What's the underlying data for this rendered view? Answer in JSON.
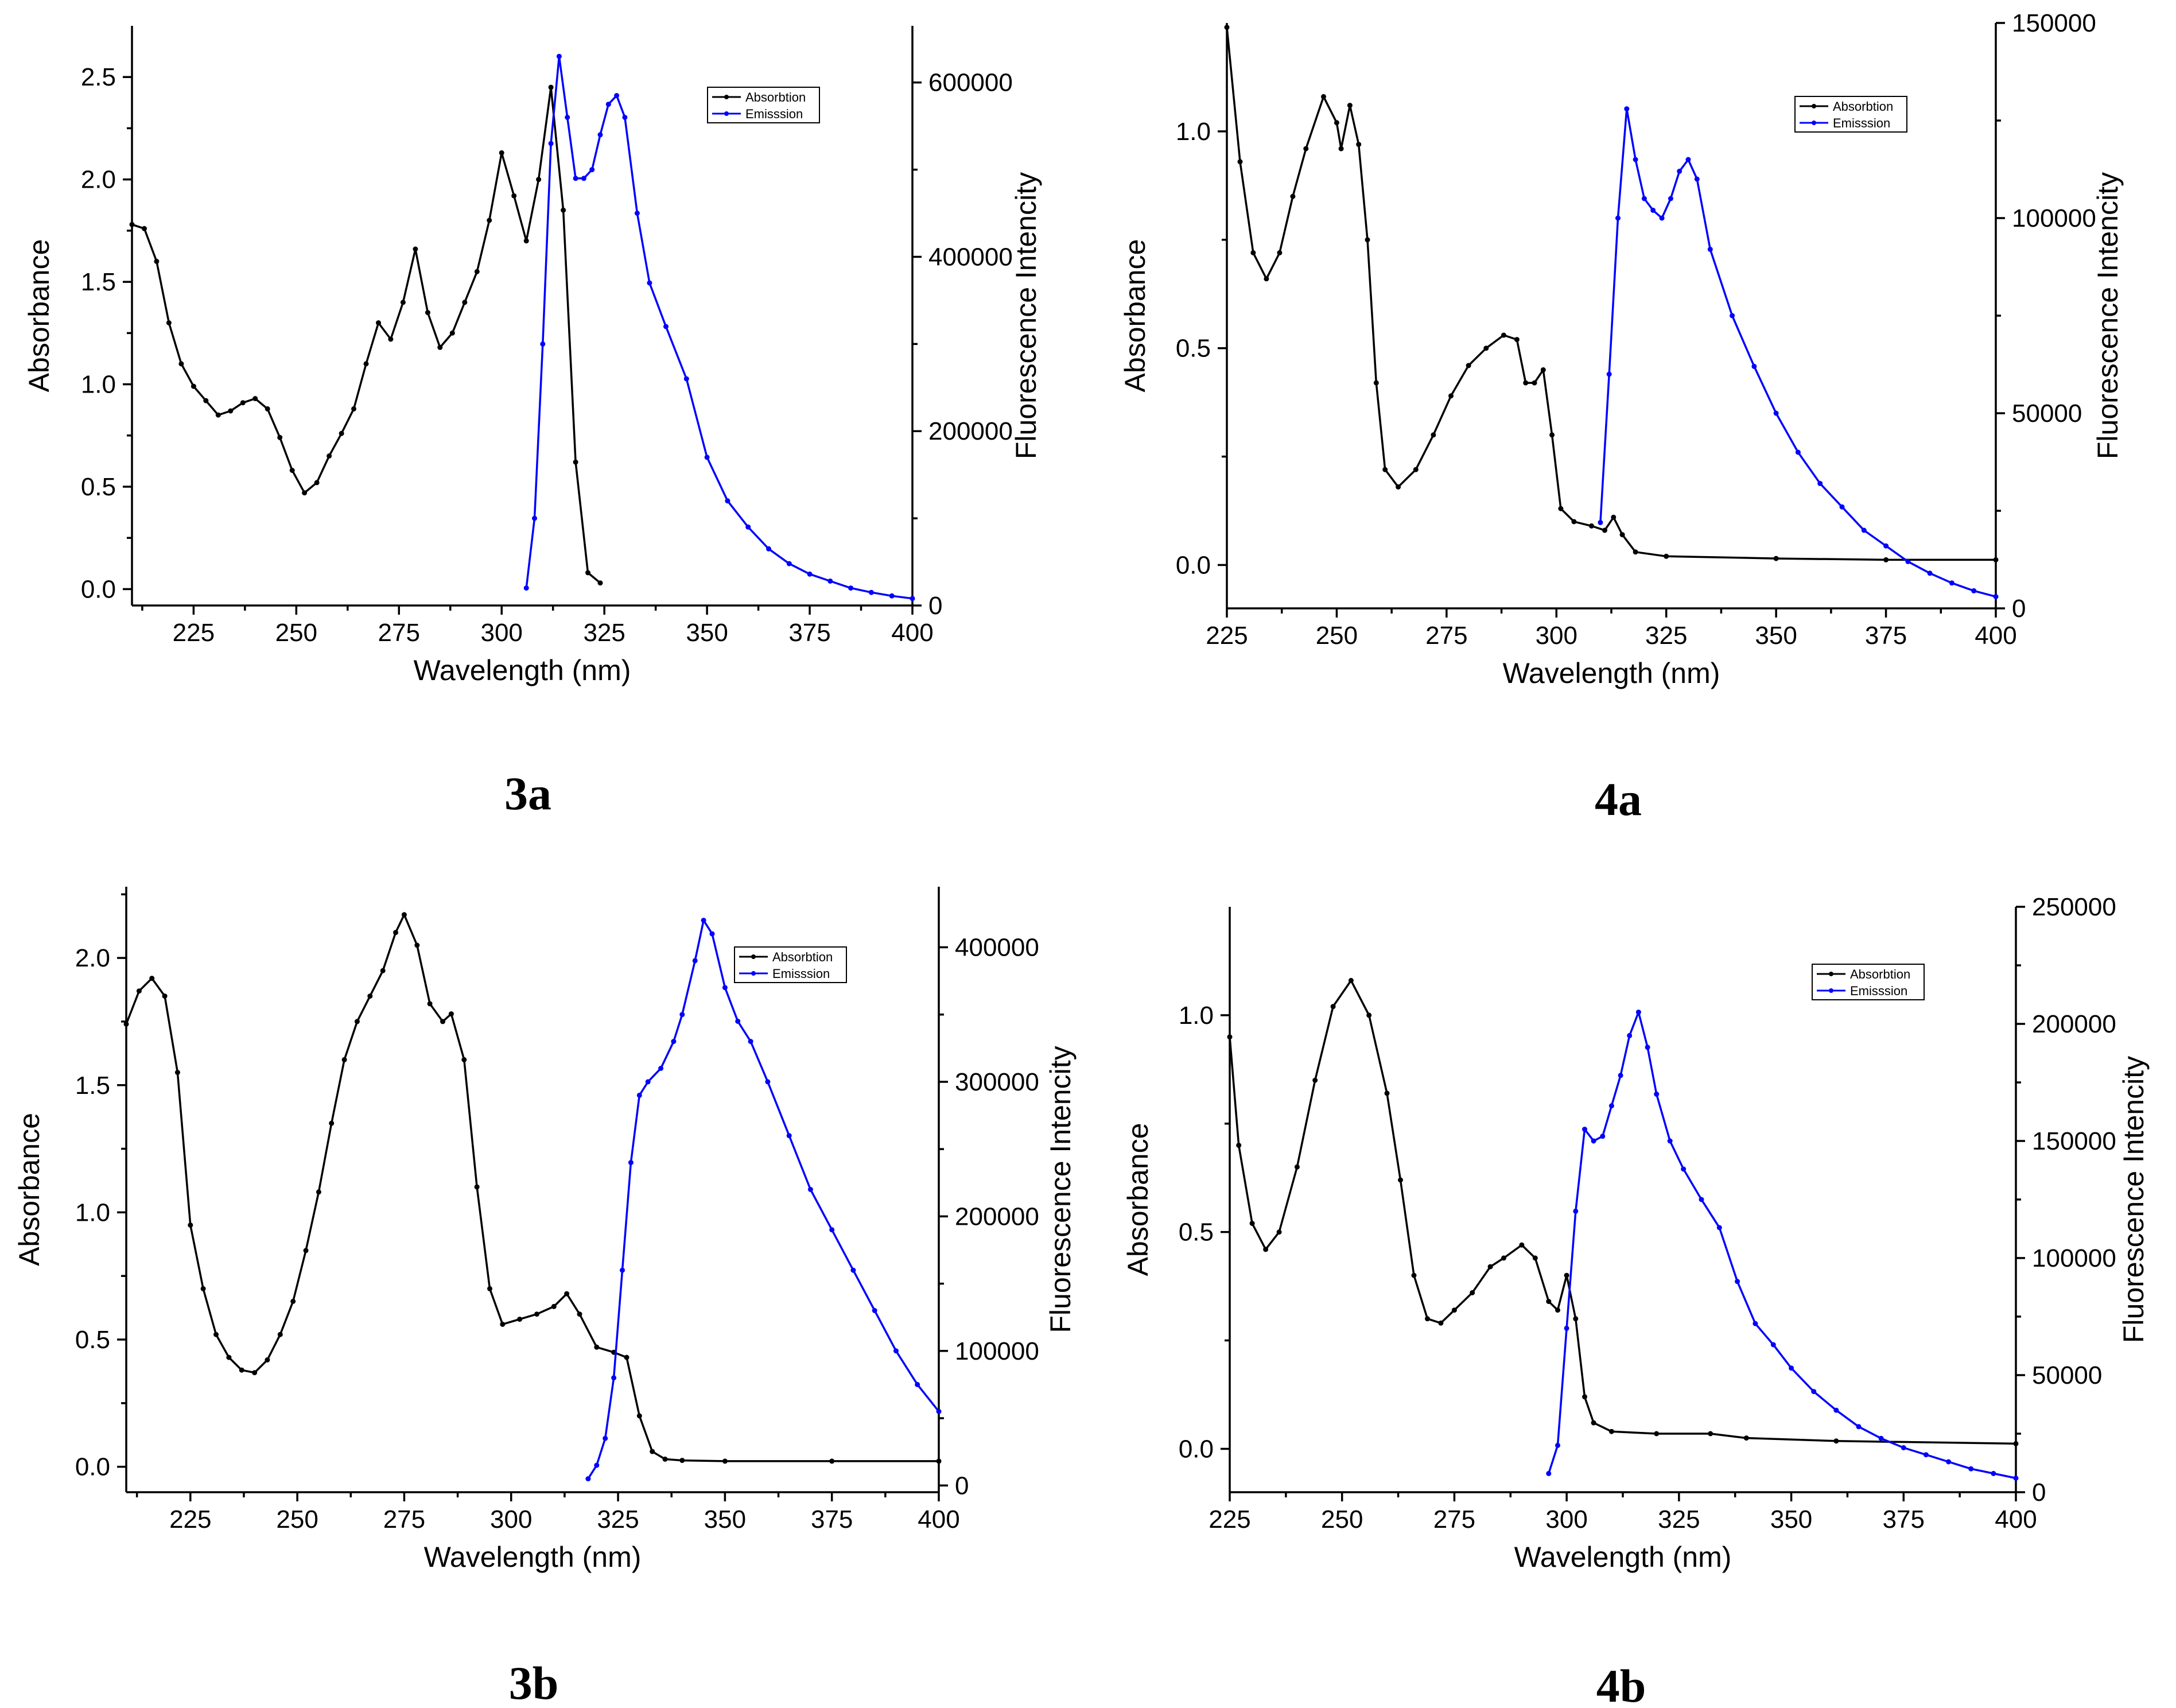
{
  "chart_data": [
    {
      "panel_label": "3a",
      "type": "line",
      "xlabel": "Wavelength (nm)",
      "ylabel": "Absorbance",
      "y2label": "Fluorescence Intencity",
      "xlim": [
        210,
        400
      ],
      "ylim": [
        -0.08,
        2.75
      ],
      "y2lim": [
        0,
        665000
      ],
      "xticks": [
        225,
        250,
        275,
        300,
        325,
        350,
        375,
        400
      ],
      "xtick_labels": [
        "225",
        "250",
        "275",
        "300",
        "325",
        "350",
        "375",
        "400"
      ],
      "yticks": [
        0,
        0.5,
        1,
        1.5,
        2,
        2.5
      ],
      "ytick_labels": [
        "0.0",
        "0.5",
        "1.0",
        "1.5",
        "2.0",
        "2.5"
      ],
      "y2ticks": [
        0,
        200000,
        400000,
        600000
      ],
      "y2tick_labels": [
        "0",
        "200000",
        "400000",
        "600000"
      ],
      "legend": [
        "Absorbtion",
        "Emisssion"
      ],
      "series": [
        {
          "name": "Absorbtion",
          "axis": "left",
          "color": "#000000",
          "x": [
            210,
            213,
            216,
            219,
            222,
            225,
            228,
            231,
            234,
            237,
            240,
            243,
            246,
            249,
            252,
            255,
            258,
            261,
            264,
            267,
            270,
            273,
            276,
            279,
            282,
            285,
            288,
            291,
            294,
            297,
            300,
            303,
            306,
            309,
            312,
            315,
            318,
            321,
            324
          ],
          "y": [
            1.78,
            1.76,
            1.6,
            1.3,
            1.1,
            0.99,
            0.92,
            0.85,
            0.87,
            0.91,
            0.93,
            0.88,
            0.74,
            0.58,
            0.47,
            0.52,
            0.65,
            0.76,
            0.88,
            1.1,
            1.3,
            1.22,
            1.4,
            1.66,
            1.35,
            1.18,
            1.25,
            1.4,
            1.55,
            1.8,
            2.13,
            1.92,
            1.7,
            2.0,
            2.45,
            1.85,
            0.62,
            0.08,
            0.03
          ]
        },
        {
          "name": "Emisssion",
          "axis": "right",
          "color": "#0000ff",
          "x": [
            306,
            308,
            310,
            312,
            314,
            316,
            318,
            320,
            322,
            324,
            326,
            328,
            330,
            333,
            336,
            340,
            345,
            350,
            355,
            360,
            365,
            370,
            375,
            380,
            385,
            390,
            395,
            400
          ],
          "y": [
            20000,
            100000,
            300000,
            530000,
            630000,
            560000,
            490000,
            490000,
            500000,
            540000,
            575000,
            585000,
            560000,
            450000,
            370000,
            320000,
            260000,
            170000,
            120000,
            90000,
            65000,
            48000,
            36000,
            28000,
            20000,
            15000,
            11000,
            8000
          ]
        }
      ]
    },
    {
      "panel_label": "4a",
      "type": "line",
      "xlabel": "Wavelength (nm)",
      "ylabel": "Absorbance",
      "y2label": "Fluorescence Intencity",
      "xlim": [
        225,
        400
      ],
      "ylim": [
        -0.1,
        1.25
      ],
      "y2lim": [
        0,
        150000
      ],
      "xticks": [
        225,
        250,
        275,
        300,
        325,
        350,
        375,
        400
      ],
      "xtick_labels": [
        "225",
        "250",
        "275",
        "300",
        "325",
        "350",
        "375",
        "400"
      ],
      "yticks": [
        0,
        0.5,
        1
      ],
      "ytick_labels": [
        "0.0",
        "0.5",
        "1.0"
      ],
      "y2ticks": [
        0,
        50000,
        100000,
        150000
      ],
      "y2tick_labels": [
        "0",
        "50000",
        "100000",
        "150000"
      ],
      "legend": [
        "Absorbtion",
        "Emisssion"
      ],
      "series": [
        {
          "name": "Absorbtion",
          "axis": "left",
          "color": "#000000",
          "x": [
            225,
            228,
            231,
            234,
            237,
            240,
            243,
            247,
            250,
            251,
            253,
            255,
            257,
            259,
            261,
            264,
            268,
            272,
            276,
            280,
            284,
            288,
            291,
            293,
            295,
            297,
            299,
            301,
            304,
            308,
            311,
            313,
            315,
            318,
            325,
            350,
            375,
            400
          ],
          "y": [
            1.24,
            0.93,
            0.72,
            0.66,
            0.72,
            0.85,
            0.96,
            1.08,
            1.02,
            0.96,
            1.06,
            0.97,
            0.75,
            0.42,
            0.22,
            0.18,
            0.22,
            0.3,
            0.39,
            0.46,
            0.5,
            0.53,
            0.52,
            0.42,
            0.42,
            0.45,
            0.3,
            0.13,
            0.1,
            0.09,
            0.08,
            0.11,
            0.07,
            0.03,
            0.02,
            0.015,
            0.012,
            0.012
          ]
        },
        {
          "name": "Emisssion",
          "axis": "right",
          "color": "#0000ff",
          "x": [
            310,
            312,
            314,
            316,
            318,
            320,
            322,
            324,
            326,
            328,
            330,
            332,
            335,
            340,
            345,
            350,
            355,
            360,
            365,
            370,
            375,
            380,
            385,
            390,
            395,
            400
          ],
          "y": [
            22000,
            60000,
            100000,
            128000,
            115000,
            105000,
            102000,
            100000,
            105000,
            112000,
            115000,
            110000,
            92000,
            75000,
            62000,
            50000,
            40000,
            32000,
            26000,
            20000,
            16000,
            12000,
            9000,
            6500,
            4500,
            3000
          ]
        }
      ]
    },
    {
      "panel_label": "3b",
      "type": "line",
      "xlabel": "Wavelength (nm)",
      "ylabel": "Absorbance",
      "y2label": "Fluorescence Intencity",
      "xlim": [
        210,
        400
      ],
      "ylim": [
        -0.1,
        2.28
      ],
      "y2lim": [
        -5000,
        445000
      ],
      "xticks": [
        225,
        250,
        275,
        300,
        325,
        350,
        375,
        400
      ],
      "xtick_labels": [
        "225",
        "250",
        "275",
        "300",
        "325",
        "350",
        "375",
        "400"
      ],
      "yticks": [
        0,
        0.5,
        1,
        1.5,
        2
      ],
      "ytick_labels": [
        "0.0",
        "0.5",
        "1.0",
        "1.5",
        "2.0"
      ],
      "y2ticks": [
        0,
        100000,
        200000,
        300000,
        400000
      ],
      "y2tick_labels": [
        "0",
        "100000",
        "200000",
        "300000",
        "400000"
      ],
      "legend": [
        "Absorbtion",
        "Emisssion"
      ],
      "series": [
        {
          "name": "Absorbtion",
          "axis": "left",
          "color": "#000000",
          "x": [
            210,
            213,
            216,
            219,
            222,
            225,
            228,
            231,
            234,
            237,
            240,
            243,
            246,
            249,
            252,
            255,
            258,
            261,
            264,
            267,
            270,
            273,
            275,
            278,
            281,
            284,
            286,
            289,
            292,
            295,
            298,
            302,
            306,
            310,
            313,
            316,
            320,
            324,
            327,
            330,
            333,
            336,
            340,
            350,
            375,
            400
          ],
          "y": [
            1.74,
            1.87,
            1.92,
            1.85,
            1.55,
            0.95,
            0.7,
            0.52,
            0.43,
            0.38,
            0.37,
            0.42,
            0.52,
            0.65,
            0.85,
            1.08,
            1.35,
            1.6,
            1.75,
            1.85,
            1.95,
            2.1,
            2.17,
            2.05,
            1.82,
            1.75,
            1.78,
            1.6,
            1.1,
            0.7,
            0.56,
            0.58,
            0.6,
            0.63,
            0.68,
            0.6,
            0.47,
            0.45,
            0.43,
            0.2,
            0.06,
            0.03,
            0.025,
            0.022,
            0.022,
            0.022
          ]
        },
        {
          "name": "Emisssion",
          "axis": "right",
          "color": "#0000ff",
          "x": [
            318,
            320,
            322,
            324,
            326,
            328,
            330,
            332,
            335,
            338,
            340,
            343,
            345,
            347,
            350,
            353,
            356,
            360,
            365,
            370,
            375,
            380,
            385,
            390,
            395,
            400
          ],
          "y": [
            5000,
            15000,
            35000,
            80000,
            160000,
            240000,
            290000,
            300000,
            310000,
            330000,
            350000,
            390000,
            420000,
            410000,
            370000,
            345000,
            330000,
            300000,
            260000,
            220000,
            190000,
            160000,
            130000,
            100000,
            75000,
            55000
          ]
        }
      ]
    },
    {
      "panel_label": "4b",
      "type": "line",
      "xlabel": "Wavelength (nm)",
      "ylabel": "Absorbance",
      "y2label": "Fluorescence Intencity",
      "xlim": [
        225,
        400
      ],
      "ylim": [
        -0.1,
        1.25
      ],
      "y2lim": [
        0,
        250000
      ],
      "xticks": [
        225,
        250,
        275,
        300,
        325,
        350,
        375,
        400
      ],
      "xtick_labels": [
        "225",
        "250",
        "275",
        "300",
        "325",
        "350",
        "375",
        "400"
      ],
      "yticks": [
        0,
        0.5,
        1
      ],
      "ytick_labels": [
        "0.0",
        "0.5",
        "1.0"
      ],
      "y2ticks": [
        0,
        50000,
        100000,
        150000,
        200000,
        250000
      ],
      "y2tick_labels": [
        "0",
        "50000",
        "100000",
        "150000",
        "200000",
        "250000"
      ],
      "legend": [
        "Absorbtion",
        "Emisssion"
      ],
      "series": [
        {
          "name": "Absorbtion",
          "axis": "left",
          "color": "#000000",
          "x": [
            225,
            227,
            230,
            233,
            236,
            240,
            244,
            248,
            252,
            256,
            260,
            263,
            266,
            269,
            272,
            275,
            279,
            283,
            286,
            290,
            293,
            296,
            298,
            300,
            302,
            304,
            306,
            310,
            320,
            332,
            340,
            360,
            400
          ],
          "y": [
            0.95,
            0.7,
            0.52,
            0.46,
            0.5,
            0.65,
            0.85,
            1.02,
            1.08,
            1.0,
            0.82,
            0.62,
            0.4,
            0.3,
            0.29,
            0.32,
            0.36,
            0.42,
            0.44,
            0.47,
            0.44,
            0.34,
            0.32,
            0.4,
            0.3,
            0.12,
            0.06,
            0.04,
            0.035,
            0.035,
            0.025,
            0.018,
            0.012
          ]
        },
        {
          "name": "Emisssion",
          "axis": "right",
          "color": "#0000ff",
          "x": [
            296,
            298,
            300,
            302,
            304,
            306,
            308,
            310,
            312,
            314,
            316,
            318,
            320,
            323,
            326,
            330,
            334,
            338,
            342,
            346,
            350,
            355,
            360,
            365,
            370,
            375,
            380,
            385,
            390,
            395,
            400
          ],
          "y": [
            8000,
            20000,
            70000,
            120000,
            155000,
            150000,
            152000,
            165000,
            178000,
            195000,
            205000,
            190000,
            170000,
            150000,
            138000,
            125000,
            113000,
            90000,
            72000,
            63000,
            53000,
            43000,
            35000,
            28000,
            23000,
            19000,
            16000,
            13000,
            10000,
            8000,
            6000
          ]
        }
      ]
    }
  ]
}
